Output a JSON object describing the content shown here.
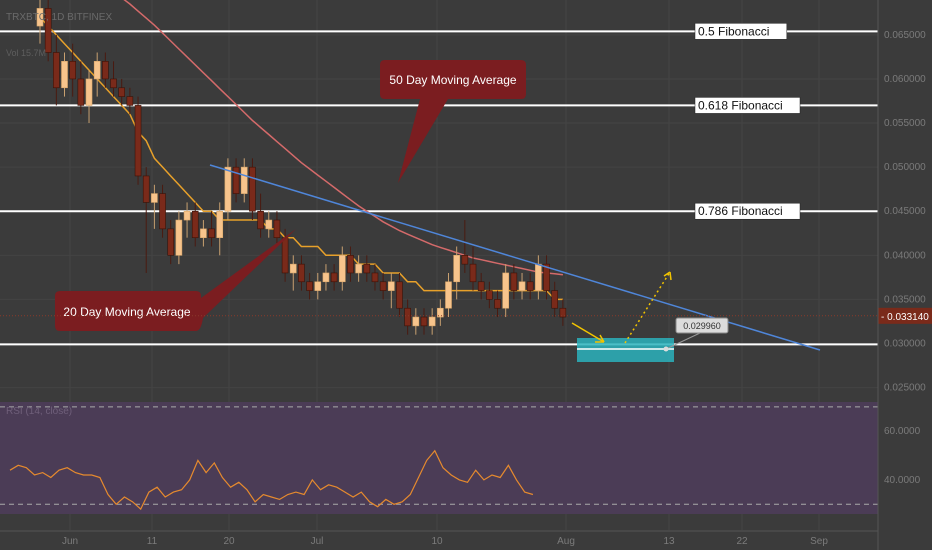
{
  "header": {
    "symbol_line": "TRXBTC, 1D  BITFINEX",
    "volume_line": "Vol 15.7M"
  },
  "chart_data": {
    "type": "candlestick",
    "x_ticks": [
      "Jun",
      "11",
      "20",
      "Jul",
      "10",
      "Aug",
      "13",
      "22",
      "Sep"
    ],
    "y_ticks": [
      "0.065000",
      "0.060000",
      "0.055000",
      "0.050000",
      "0.045000",
      "0.040000",
      "0.035000",
      "0.030000",
      "0.025000"
    ],
    "ylim": [
      0.0245,
      0.0685
    ],
    "last_price": "0.033140",
    "target_price_label": "0.029960",
    "fibonacci_levels": [
      {
        "label": "0.5 Fibonacci",
        "price": 0.0654
      },
      {
        "label": "0.618 Fibonacci",
        "price": 0.057
      },
      {
        "label": "0.786 Fibonacci",
        "price": 0.045
      },
      {
        "label": "",
        "price": 0.0299
      }
    ],
    "annotations": {
      "ma50_label": "50 Day Moving Average",
      "ma20_label": "20 Day Moving Average"
    },
    "candles": [
      [
        0.066,
        0.071,
        0.064,
        0.068
      ],
      [
        0.068,
        0.07,
        0.062,
        0.063
      ],
      [
        0.063,
        0.065,
        0.057,
        0.059
      ],
      [
        0.059,
        0.063,
        0.058,
        0.062
      ],
      [
        0.062,
        0.064,
        0.058,
        0.06
      ],
      [
        0.06,
        0.062,
        0.056,
        0.057
      ],
      [
        0.057,
        0.061,
        0.055,
        0.06
      ],
      [
        0.06,
        0.063,
        0.058,
        0.062
      ],
      [
        0.062,
        0.063,
        0.059,
        0.06
      ],
      [
        0.06,
        0.062,
        0.058,
        0.059
      ],
      [
        0.059,
        0.06,
        0.057,
        0.058
      ],
      [
        0.058,
        0.059,
        0.056,
        0.057
      ],
      [
        0.057,
        0.058,
        0.048,
        0.049
      ],
      [
        0.049,
        0.05,
        0.038,
        0.046
      ],
      [
        0.046,
        0.048,
        0.043,
        0.047
      ],
      [
        0.047,
        0.048,
        0.042,
        0.043
      ],
      [
        0.043,
        0.044,
        0.039,
        0.04
      ],
      [
        0.04,
        0.045,
        0.039,
        0.044
      ],
      [
        0.044,
        0.046,
        0.042,
        0.045
      ],
      [
        0.045,
        0.046,
        0.041,
        0.042
      ],
      [
        0.042,
        0.044,
        0.041,
        0.043
      ],
      [
        0.043,
        0.045,
        0.041,
        0.042
      ],
      [
        0.042,
        0.046,
        0.04,
        0.045
      ],
      [
        0.045,
        0.051,
        0.044,
        0.05
      ],
      [
        0.05,
        0.051,
        0.046,
        0.047
      ],
      [
        0.047,
        0.051,
        0.046,
        0.05
      ],
      [
        0.05,
        0.051,
        0.044,
        0.045
      ],
      [
        0.045,
        0.047,
        0.042,
        0.043
      ],
      [
        0.043,
        0.045,
        0.042,
        0.044
      ],
      [
        0.044,
        0.045,
        0.041,
        0.042
      ],
      [
        0.042,
        0.043,
        0.037,
        0.038
      ],
      [
        0.038,
        0.04,
        0.036,
        0.039
      ],
      [
        0.039,
        0.04,
        0.036,
        0.037
      ],
      [
        0.037,
        0.038,
        0.035,
        0.036
      ],
      [
        0.036,
        0.038,
        0.035,
        0.037
      ],
      [
        0.037,
        0.039,
        0.036,
        0.038
      ],
      [
        0.038,
        0.039,
        0.036,
        0.037
      ],
      [
        0.037,
        0.041,
        0.036,
        0.04
      ],
      [
        0.04,
        0.041,
        0.037,
        0.038
      ],
      [
        0.038,
        0.04,
        0.037,
        0.039
      ],
      [
        0.039,
        0.04,
        0.037,
        0.038
      ],
      [
        0.038,
        0.039,
        0.036,
        0.037
      ],
      [
        0.037,
        0.038,
        0.035,
        0.036
      ],
      [
        0.036,
        0.038,
        0.034,
        0.037
      ],
      [
        0.037,
        0.038,
        0.033,
        0.034
      ],
      [
        0.034,
        0.035,
        0.031,
        0.032
      ],
      [
        0.032,
        0.034,
        0.031,
        0.033
      ],
      [
        0.033,
        0.034,
        0.031,
        0.032
      ],
      [
        0.032,
        0.034,
        0.031,
        0.033
      ],
      [
        0.033,
        0.035,
        0.032,
        0.034
      ],
      [
        0.034,
        0.038,
        0.033,
        0.037
      ],
      [
        0.037,
        0.041,
        0.035,
        0.04
      ],
      [
        0.04,
        0.044,
        0.038,
        0.039
      ],
      [
        0.039,
        0.041,
        0.036,
        0.037
      ],
      [
        0.037,
        0.038,
        0.035,
        0.036
      ],
      [
        0.036,
        0.037,
        0.034,
        0.035
      ],
      [
        0.035,
        0.036,
        0.033,
        0.034
      ],
      [
        0.034,
        0.039,
        0.033,
        0.038
      ],
      [
        0.038,
        0.039,
        0.035,
        0.036
      ],
      [
        0.036,
        0.038,
        0.035,
        0.037
      ],
      [
        0.037,
        0.038,
        0.035,
        0.036
      ],
      [
        0.036,
        0.04,
        0.035,
        0.039
      ],
      [
        0.039,
        0.04,
        0.035,
        0.036
      ],
      [
        0.036,
        0.037,
        0.033,
        0.034
      ],
      [
        0.034,
        0.035,
        0.032,
        0.033
      ]
    ],
    "ma20": [
      0.067,
      0.066,
      0.065,
      0.064,
      0.063,
      0.062,
      0.061,
      0.06,
      0.059,
      0.058,
      0.057,
      0.056,
      0.054,
      0.053,
      0.051,
      0.05,
      0.049,
      0.048,
      0.047,
      0.046,
      0.045,
      0.045,
      0.044,
      0.044,
      0.044,
      0.044,
      0.044,
      0.044,
      0.043,
      0.043,
      0.042,
      0.042,
      0.041,
      0.041,
      0.041,
      0.04,
      0.04,
      0.04,
      0.04,
      0.039,
      0.039,
      0.039,
      0.038,
      0.038,
      0.038,
      0.037,
      0.037,
      0.036,
      0.036,
      0.036,
      0.036,
      0.036,
      0.036,
      0.036,
      0.036,
      0.036,
      0.036,
      0.036,
      0.036,
      0.036,
      0.036,
      0.036,
      0.036,
      0.035,
      0.035
    ],
    "ma50": [
      0.075,
      0.0745,
      0.074,
      0.0735,
      0.073,
      0.0725,
      0.072,
      0.0713,
      0.0706,
      0.0699,
      0.0692,
      0.0685,
      0.0677,
      0.0669,
      0.0661,
      0.0652,
      0.0643,
      0.0634,
      0.0625,
      0.0616,
      0.0607,
      0.0598,
      0.0589,
      0.058,
      0.0571,
      0.0562,
      0.0553,
      0.0545,
      0.0537,
      0.0529,
      0.0521,
      0.0513,
      0.0505,
      0.0498,
      0.0491,
      0.0484,
      0.0477,
      0.047,
      0.0463,
      0.0456,
      0.045,
      0.0444,
      0.0438,
      0.0433,
      0.0428,
      0.0424,
      0.042,
      0.0416,
      0.0412,
      0.0409,
      0.0406,
      0.0403,
      0.04,
      0.0397,
      0.0395,
      0.0393,
      0.0391,
      0.0389,
      0.0387,
      0.0385,
      0.0383,
      0.0381,
      0.038,
      0.0379,
      0.0378
    ],
    "rsi": {
      "label": "RSI (14, close)",
      "ticks": [
        "60.0000",
        "40.0000"
      ],
      "values": [
        44,
        46,
        45,
        42,
        43,
        41,
        44,
        45,
        43,
        42,
        42,
        41,
        34,
        30,
        33,
        31,
        28,
        35,
        37,
        33,
        35,
        36,
        40,
        48,
        43,
        47,
        41,
        37,
        39,
        36,
        31,
        34,
        33,
        32,
        34,
        35,
        34,
        40,
        36,
        38,
        37,
        35,
        33,
        35,
        31,
        29,
        32,
        30,
        31,
        34,
        41,
        48,
        52,
        45,
        42,
        40,
        39,
        44,
        40,
        42,
        41,
        46,
        40,
        35,
        34
      ]
    },
    "colors": {
      "bull": "#f7c48c",
      "bear": "#7a2a1a",
      "ma20": "#e8a12a",
      "ma50": "#d46a6a",
      "trendline": "#4f86d9",
      "target_box": "#2bb3bd",
      "callout_bg": "#7b1d20",
      "rsi_panel": "#4b3c56",
      "rsi_line": "#e68a2e",
      "last_price_bg": "#7a2a1a"
    }
  }
}
